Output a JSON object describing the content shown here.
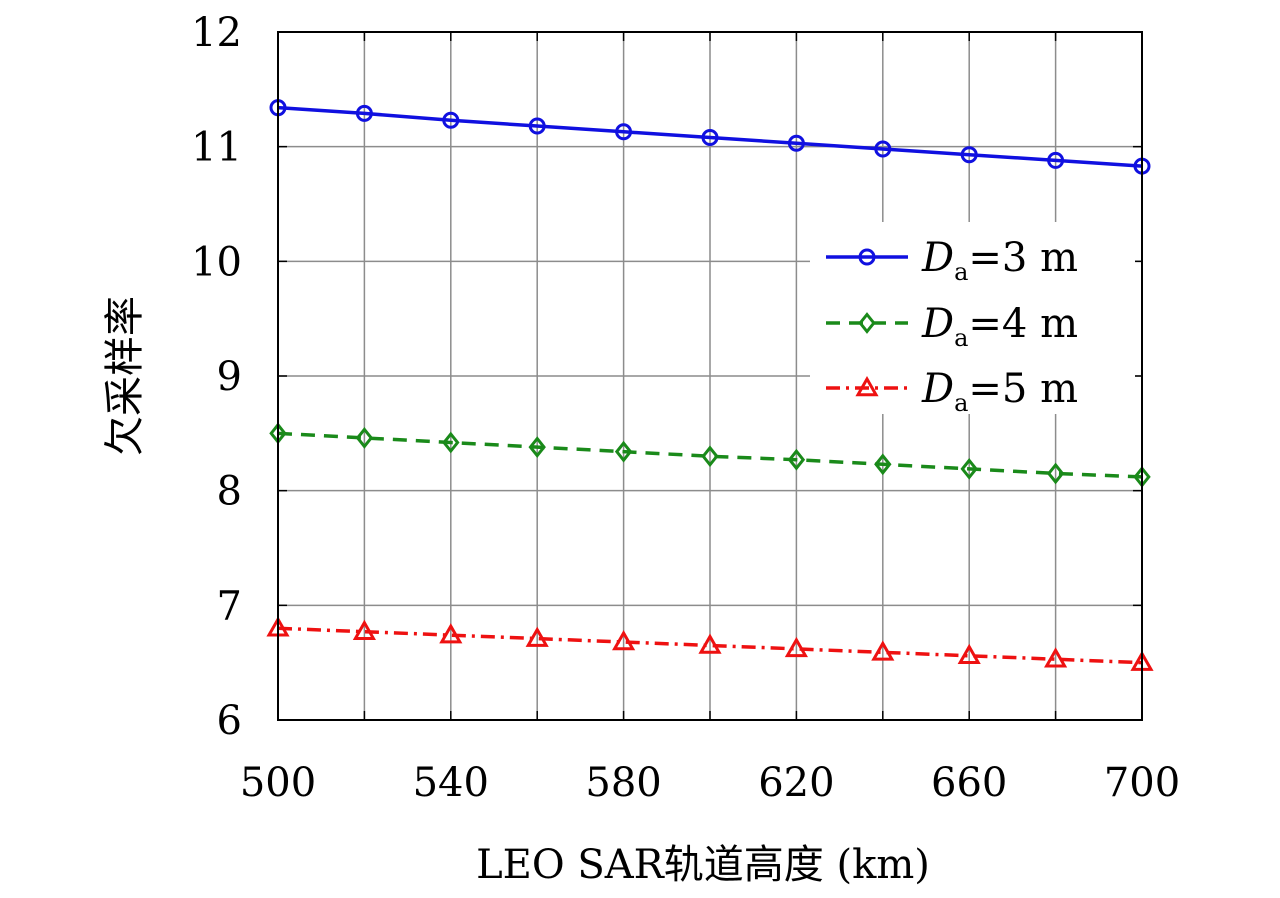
{
  "chart_data": {
    "type": "line",
    "xlabel": "LEO SAR轨道高度 (km)",
    "ylabel": "欠采样率",
    "xlim": [
      500,
      700
    ],
    "ylim": [
      6,
      12
    ],
    "x_ticks": [
      500,
      540,
      580,
      620,
      660,
      700
    ],
    "y_ticks": [
      6,
      7,
      8,
      9,
      10,
      11,
      12
    ],
    "grid": true,
    "legend_position": "right",
    "x": [
      500,
      520,
      540,
      560,
      580,
      600,
      620,
      640,
      660,
      680,
      700
    ],
    "series": [
      {
        "name": "Da=3 m",
        "legend": {
          "symbol": "D",
          "sub": "a",
          "suffix": "=3 m"
        },
        "color": "#1010e0",
        "line_style": "solid",
        "marker": "circle",
        "values": [
          11.34,
          11.29,
          11.23,
          11.18,
          11.13,
          11.08,
          11.03,
          10.98,
          10.93,
          10.88,
          10.83
        ]
      },
      {
        "name": "Da=4 m",
        "legend": {
          "symbol": "D",
          "sub": "a",
          "suffix": "=4 m"
        },
        "color": "#1a8a1a",
        "line_style": "dashed",
        "marker": "diamond",
        "values": [
          8.5,
          8.46,
          8.42,
          8.38,
          8.34,
          8.3,
          8.27,
          8.23,
          8.19,
          8.15,
          8.12
        ]
      },
      {
        "name": "Da=5 m",
        "legend": {
          "symbol": "D",
          "sub": "a",
          "suffix": "=5 m"
        },
        "color": "#ee1111",
        "line_style": "dashdot",
        "marker": "triangle",
        "values": [
          6.8,
          6.77,
          6.74,
          6.71,
          6.68,
          6.65,
          6.62,
          6.59,
          6.56,
          6.53,
          6.5
        ]
      }
    ]
  }
}
